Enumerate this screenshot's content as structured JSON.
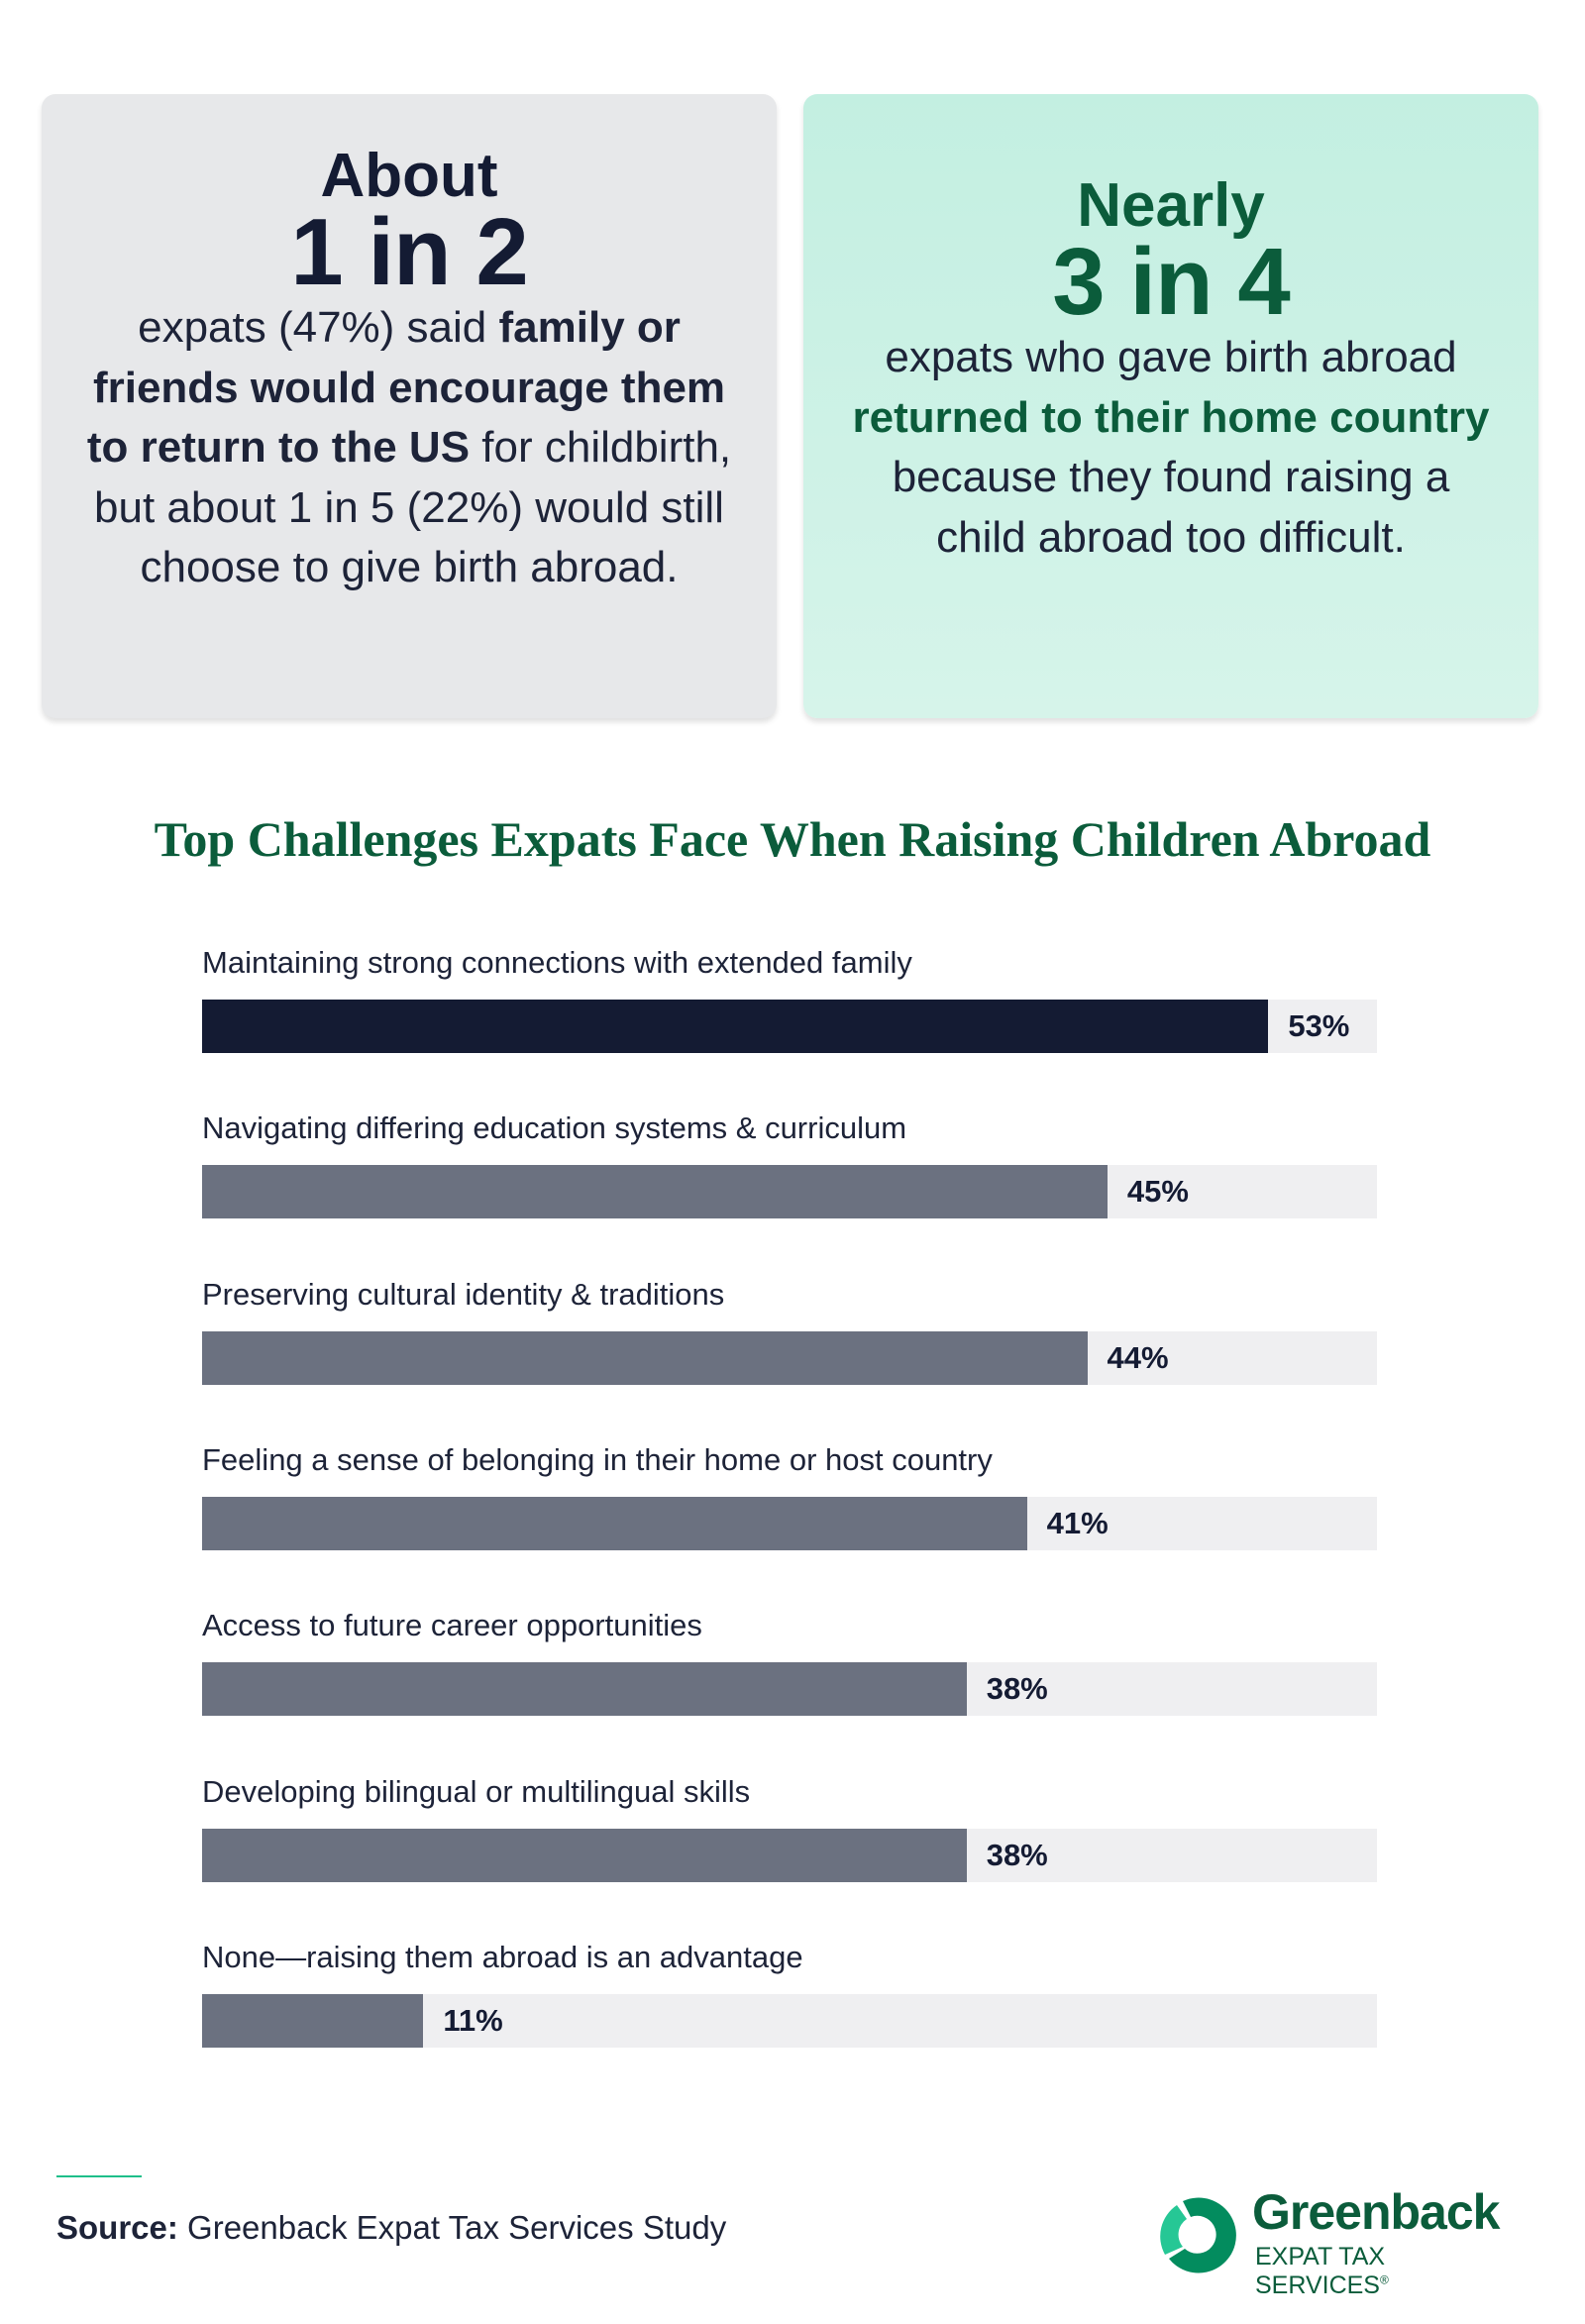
{
  "card_left": {
    "lead": "About",
    "stat": "1 in 2",
    "text_before": "expats (47%) said ",
    "text_bold": "family or friends would encourage them to return to the US",
    "text_after": " for childbirth, but about 1 in 5 (22%) would still choose to give birth abroad."
  },
  "card_right": {
    "lead": "Nearly",
    "stat": "3 in 4",
    "text_before": "expats who gave birth abroad ",
    "text_bold": "returned to their home country",
    "text_after": " because they found raising a child abroad too difficult."
  },
  "chart_data": {
    "type": "bar",
    "orientation": "horizontal",
    "title": "Top Challenges Expats Face When Raising Children Abroad",
    "categories": [
      "Maintaining strong connections with extended family",
      "Navigating differing education systems & curriculum",
      "Preserving cultural identity & traditions",
      "Feeling a sense of belonging in their home or host country",
      "Access to future career opportunities",
      "Developing bilingual or multilingual skills",
      "None—raising them abroad is an advantage"
    ],
    "values": [
      53,
      45,
      44,
      41,
      38,
      38,
      11
    ],
    "value_labels": [
      "53%",
      "45%",
      "44%",
      "41%",
      "38%",
      "38%",
      "11%"
    ],
    "highlight_color": "#141b33",
    "bar_color": "#6b7180",
    "track_color": "#efeff1"
  },
  "footer": {
    "source_label": "Source:",
    "source_text": " Greenback Expat Tax Services Study"
  },
  "logo": {
    "name": "Greenback",
    "tagline": "EXPAT TAX SERVICES",
    "mark": "®"
  }
}
